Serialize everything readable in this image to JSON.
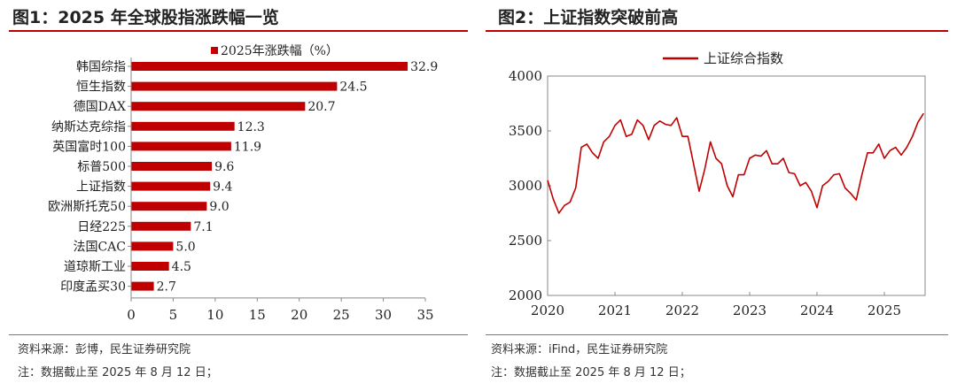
{
  "panels": [
    {
      "title": "图1：2025 年全球股指涨跌幅一览",
      "source": "资料来源：彭博，民生证券研究院",
      "note": "注：数据截止至 2025 年 8 月 12 日；"
    },
    {
      "title": "图2：上证指数突破前高",
      "source": "资料来源：iFind，民生证券研究院",
      "note": "注：数据截止至 2025 年 8 月 12 日；"
    }
  ],
  "accent_color": "#c00000",
  "chart_data": [
    {
      "type": "bar",
      "orientation": "horizontal",
      "categories": [
        "韩国综指",
        "恒生指数",
        "德国DAX",
        "纳斯达克综指",
        "英国富时100",
        "标普500",
        "上证指数",
        "欧洲斯托克50",
        "日经225",
        "法国CAC",
        "道琼斯工业",
        "印度孟买30"
      ],
      "series": [
        {
          "name": "2025年涨跌幅（%）",
          "values": [
            32.9,
            24.5,
            20.7,
            12.3,
            11.9,
            9.6,
            9.4,
            9.0,
            7.1,
            5.0,
            4.5,
            2.7
          ]
        }
      ],
      "value_labels": [
        "32.9",
        "24.5",
        "20.7",
        "12.3",
        "11.9",
        "9.6",
        "9.4",
        "9.0",
        "7.1",
        "5.0",
        "4.5",
        "2.7"
      ],
      "xlim": [
        0,
        35
      ],
      "xticks": [
        "0",
        "5",
        "10",
        "15",
        "20",
        "25",
        "30",
        "35"
      ],
      "color": "#c00000",
      "legend": "top"
    },
    {
      "type": "line",
      "series": [
        {
          "name": "上证综合指数",
          "x": [
            "2020-01",
            "2020-02",
            "2020-03",
            "2020-04",
            "2020-05",
            "2020-06",
            "2020-07",
            "2020-08",
            "2020-09",
            "2020-10",
            "2020-11",
            "2020-12",
            "2021-01",
            "2021-02",
            "2021-03",
            "2021-04",
            "2021-05",
            "2021-06",
            "2021-07",
            "2021-08",
            "2021-09",
            "2021-10",
            "2021-11",
            "2021-12",
            "2022-01",
            "2022-02",
            "2022-03",
            "2022-04",
            "2022-05",
            "2022-06",
            "2022-07",
            "2022-08",
            "2022-09",
            "2022-10",
            "2022-11",
            "2022-12",
            "2023-01",
            "2023-02",
            "2023-03",
            "2023-04",
            "2023-05",
            "2023-06",
            "2023-07",
            "2023-08",
            "2023-09",
            "2023-10",
            "2023-11",
            "2023-12",
            "2024-01",
            "2024-02",
            "2024-03",
            "2024-04",
            "2024-05",
            "2024-06",
            "2024-07",
            "2024-08",
            "2024-09",
            "2024-10",
            "2024-11",
            "2024-12",
            "2025-01",
            "2025-02",
            "2025-03",
            "2025-04",
            "2025-05",
            "2025-06",
            "2025-07",
            "2025-08"
          ],
          "values": [
            3050,
            2880,
            2750,
            2820,
            2850,
            2980,
            3350,
            3380,
            3300,
            3250,
            3400,
            3450,
            3550,
            3600,
            3450,
            3470,
            3600,
            3550,
            3420,
            3550,
            3590,
            3560,
            3550,
            3620,
            3450,
            3450,
            3200,
            2950,
            3150,
            3400,
            3250,
            3200,
            3000,
            2900,
            3100,
            3100,
            3250,
            3280,
            3270,
            3320,
            3200,
            3200,
            3250,
            3120,
            3110,
            3000,
            3030,
            2950,
            2800,
            3000,
            3040,
            3100,
            3110,
            2980,
            2930,
            2870,
            3100,
            3300,
            3300,
            3380,
            3250,
            3320,
            3350,
            3280,
            3350,
            3450,
            3580,
            3660
          ]
        }
      ],
      "xticks": [
        "2020",
        "2021",
        "2022",
        "2023",
        "2024",
        "2025"
      ],
      "yticks": [
        "2000",
        "2500",
        "3000",
        "3500",
        "4000"
      ],
      "ylim": [
        2000,
        4000
      ],
      "color": "#c00000",
      "legend": "top"
    }
  ]
}
